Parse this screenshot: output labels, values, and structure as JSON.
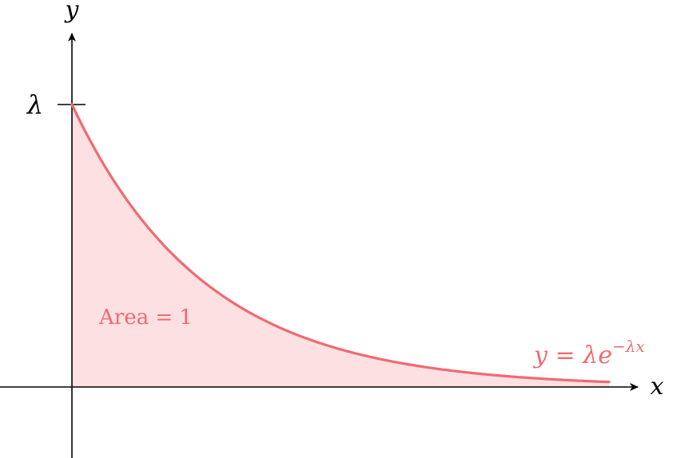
{
  "axes": {
    "x_label": "x",
    "y_label": "y",
    "y_tick_label": "λ"
  },
  "curve": {
    "label_lhs": "y",
    "label_eq": " = ",
    "label_lambda": "λ",
    "label_base": "e",
    "label_exponent": "−λx"
  },
  "area": {
    "label": "Area = 1"
  },
  "colors": {
    "curve": "#f06a70",
    "fill": "#fde0e2",
    "label": "#f06a70",
    "axis": "#000000"
  },
  "chart_data": {
    "type": "area",
    "function": "λ e^(−λx)",
    "area_under_curve": 1
  }
}
